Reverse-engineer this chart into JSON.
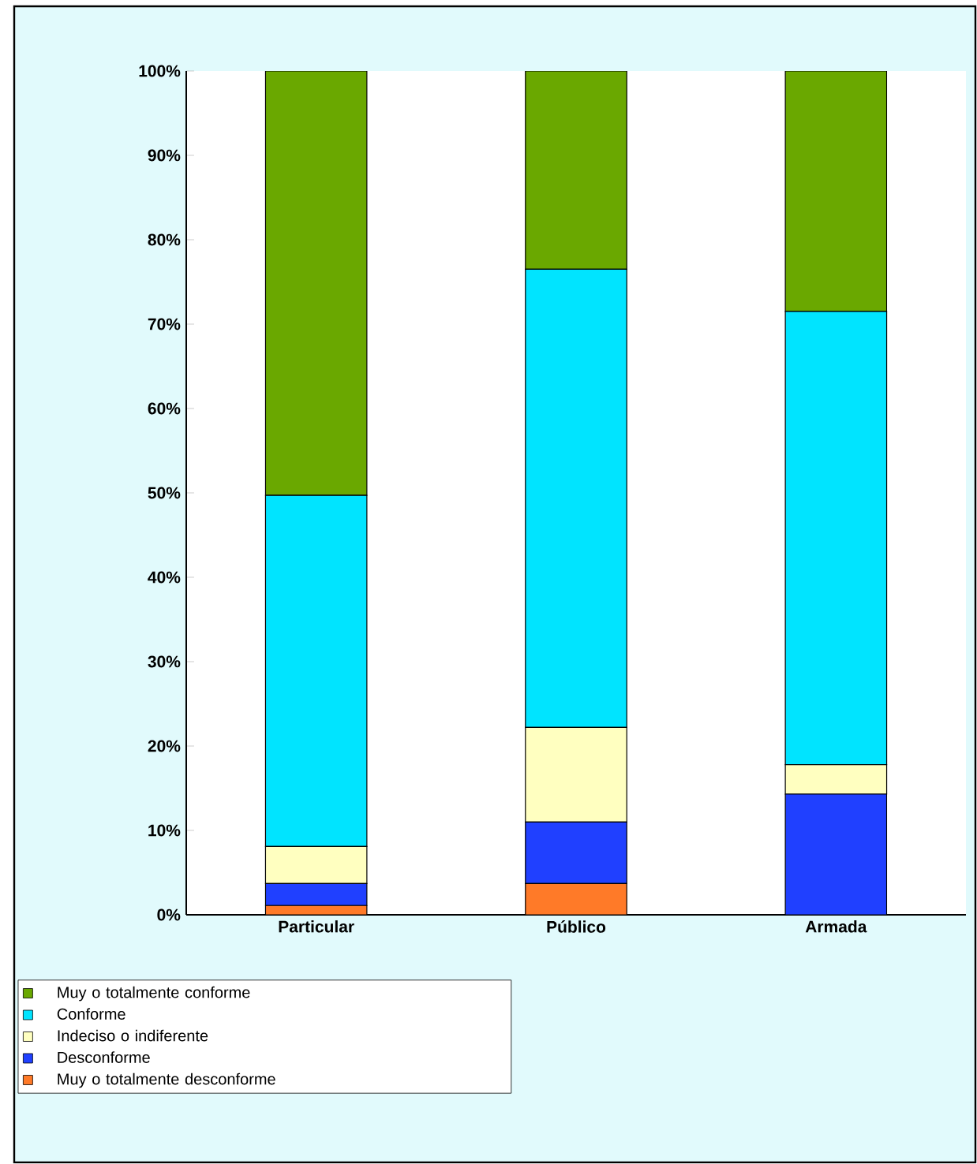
{
  "chart_data": {
    "type": "bar",
    "stacked": true,
    "categories": [
      "Particular",
      "Público",
      "Armada"
    ],
    "series": [
      {
        "name": "Muy o totalmente desconforme",
        "color": "#ff7a28",
        "values": [
          1.1,
          3.7,
          0
        ]
      },
      {
        "name": "Desconforme",
        "color": "#2040ff",
        "values": [
          2.6,
          7.3,
          14.3
        ]
      },
      {
        "name": "Indeciso o indiferente",
        "color": "#ffffc0",
        "values": [
          4.4,
          11.2,
          3.5
        ]
      },
      {
        "name": "Conforme",
        "color": "#00e4ff",
        "values": [
          41.6,
          54.3,
          53.7
        ]
      },
      {
        "name": "Muy o totalmente conforme",
        "color": "#6aa800",
        "values": [
          50.3,
          23.5,
          28.5
        ]
      }
    ],
    "ylim": [
      0,
      100
    ],
    "yticks": [
      {
        "value": 0,
        "label": "0%"
      },
      {
        "value": 10,
        "label": "10%"
      },
      {
        "value": 20,
        "label": "20%"
      },
      {
        "value": 30,
        "label": "30%"
      },
      {
        "value": 40,
        "label": "40%"
      },
      {
        "value": 50,
        "label": "50%"
      },
      {
        "value": 60,
        "label": "60%"
      },
      {
        "value": 70,
        "label": "70%"
      },
      {
        "value": 80,
        "label": "80%"
      },
      {
        "value": 90,
        "label": "90%"
      },
      {
        "value": 100,
        "label": "100%"
      }
    ],
    "grid": false,
    "legend": "bottom"
  }
}
